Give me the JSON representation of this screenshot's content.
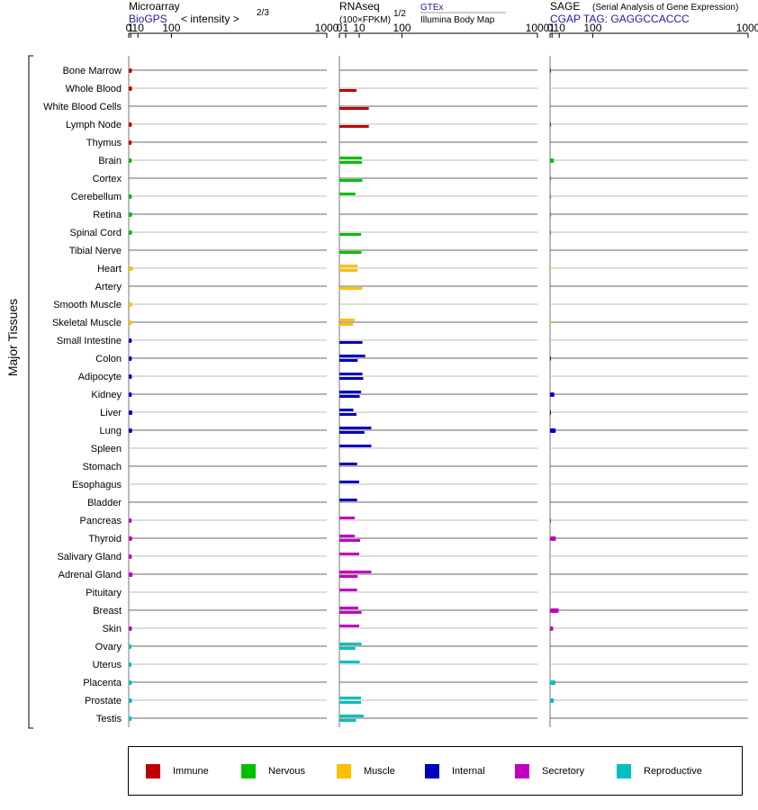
{
  "chart_data": {
    "type": "bar",
    "ylabel": "Major Tissues",
    "categories": [
      "Bone Marrow",
      "Whole Blood",
      "White Blood Cells",
      "Lymph Node",
      "Thymus",
      "Brain",
      "Cortex",
      "Cerebellum",
      "Retina",
      "Spinal Cord",
      "Tibial Nerve",
      "Heart",
      "Artery",
      "Smooth Muscle",
      "Skeletal Muscle",
      "Small Intestine",
      "Colon",
      "Adipocyte",
      "Kidney",
      "Liver",
      "Lung",
      "Spleen",
      "Stomach",
      "Esophagus",
      "Bladder",
      "Pancreas",
      "Thyroid",
      "Salivary Gland",
      "Adrenal Gland",
      "Pituitary",
      "Breast",
      "Skin",
      "Ovary",
      "Uterus",
      "Placenta",
      "Prostate",
      "Testis"
    ],
    "groups": [
      "Immune",
      "Immune",
      "Immune",
      "Immune",
      "Immune",
      "Nervous",
      "Nervous",
      "Nervous",
      "Nervous",
      "Nervous",
      "Nervous",
      "Muscle",
      "Muscle",
      "Muscle",
      "Muscle",
      "Internal",
      "Internal",
      "Internal",
      "Internal",
      "Internal",
      "Internal",
      "Internal",
      "Internal",
      "Internal",
      "Internal",
      "Secretory",
      "Secretory",
      "Secretory",
      "Secretory",
      "Secretory",
      "Secretory",
      "Secretory",
      "Reproductive",
      "Reproductive",
      "Reproductive",
      "Reproductive",
      "Reproductive"
    ],
    "panels": [
      {
        "id": "microarray",
        "title": "Microarray",
        "source": "BioGPS",
        "unit_text": "< intensity >",
        "unit_exp": "2/3",
        "ticks": [
          "0",
          "1",
          "10",
          "100",
          "1000"
        ],
        "xlim": [
          0,
          1000
        ],
        "scale": "power-2/3",
        "values": [
          2.0,
          2.1,
          null,
          1.9,
          1.7,
          1.9,
          null,
          1.9,
          2.2,
          2.1,
          null,
          3.1,
          null,
          2.1,
          2.2,
          1.9,
          1.9,
          2.0,
          1.9,
          2.4,
          2.2,
          null,
          null,
          null,
          null,
          1.8,
          2.2,
          1.9,
          2.7,
          null,
          null,
          2.0,
          1.7,
          1.7,
          2.0,
          2.1,
          1.8
        ]
      },
      {
        "id": "rnaseq",
        "title": "RNAseq",
        "unit_text": "(100×FPKM)",
        "unit_exp": "1/2",
        "legend_top": "GTEx",
        "legend_bottom": "Illumina Body Map",
        "ticks": [
          "0",
          "1",
          "10",
          "100",
          "1000"
        ],
        "xlim": [
          0,
          1000
        ],
        "scale": "sqrt",
        "values_gtex": [
          null,
          7.5,
          22,
          22,
          null,
          13,
          13.5,
          null,
          null,
          12,
          12.5,
          8.5,
          13.5,
          null,
          4.8,
          13.5,
          8.5,
          14.5,
          10.5,
          7.5,
          16,
          null,
          null,
          null,
          null,
          null,
          11,
          null,
          8.5,
          null,
          12.5,
          null,
          6.5,
          null,
          null,
          12,
          7
        ],
        "values_ibm": [
          null,
          null,
          null,
          null,
          null,
          13,
          null,
          6.5,
          null,
          null,
          null,
          8.5,
          null,
          null,
          6,
          null,
          17,
          13.5,
          12,
          5,
          26,
          26,
          8,
          10,
          8,
          6,
          6,
          10,
          26,
          8,
          9,
          10,
          12.5,
          10.5,
          null,
          12,
          15
        ]
      },
      {
        "id": "sage",
        "title": "SAGE",
        "subtitle": "(Serial Analysis of Gene Expression)",
        "tag": "CGAP TAG: GAGGCCACCC",
        "ticks": [
          "0",
          "1",
          "10",
          "100",
          "1000"
        ],
        "xlim": [
          0,
          1000
        ],
        "scale": "power-2/3",
        "values": [
          0.1,
          null,
          null,
          0.1,
          null,
          2.6,
          0.05,
          0.05,
          0.05,
          0.05,
          null,
          0.05,
          null,
          null,
          0.05,
          null,
          0.1,
          null,
          3.2,
          0.1,
          4.9,
          null,
          null,
          null,
          null,
          0.1,
          5.1,
          null,
          null,
          null,
          9.2,
          2.0,
          null,
          null,
          4.6,
          2.7,
          null
        ]
      }
    ],
    "legend": [
      {
        "label": "Immune",
        "color": "#c00000"
      },
      {
        "label": "Nervous",
        "color": "#00c000"
      },
      {
        "label": "Muscle",
        "color": "#ffc000"
      },
      {
        "label": "Internal",
        "color": "#0000c0"
      },
      {
        "label": "Secretory",
        "color": "#c000c0"
      },
      {
        "label": "Reproductive",
        "color": "#00c0c0"
      }
    ]
  }
}
